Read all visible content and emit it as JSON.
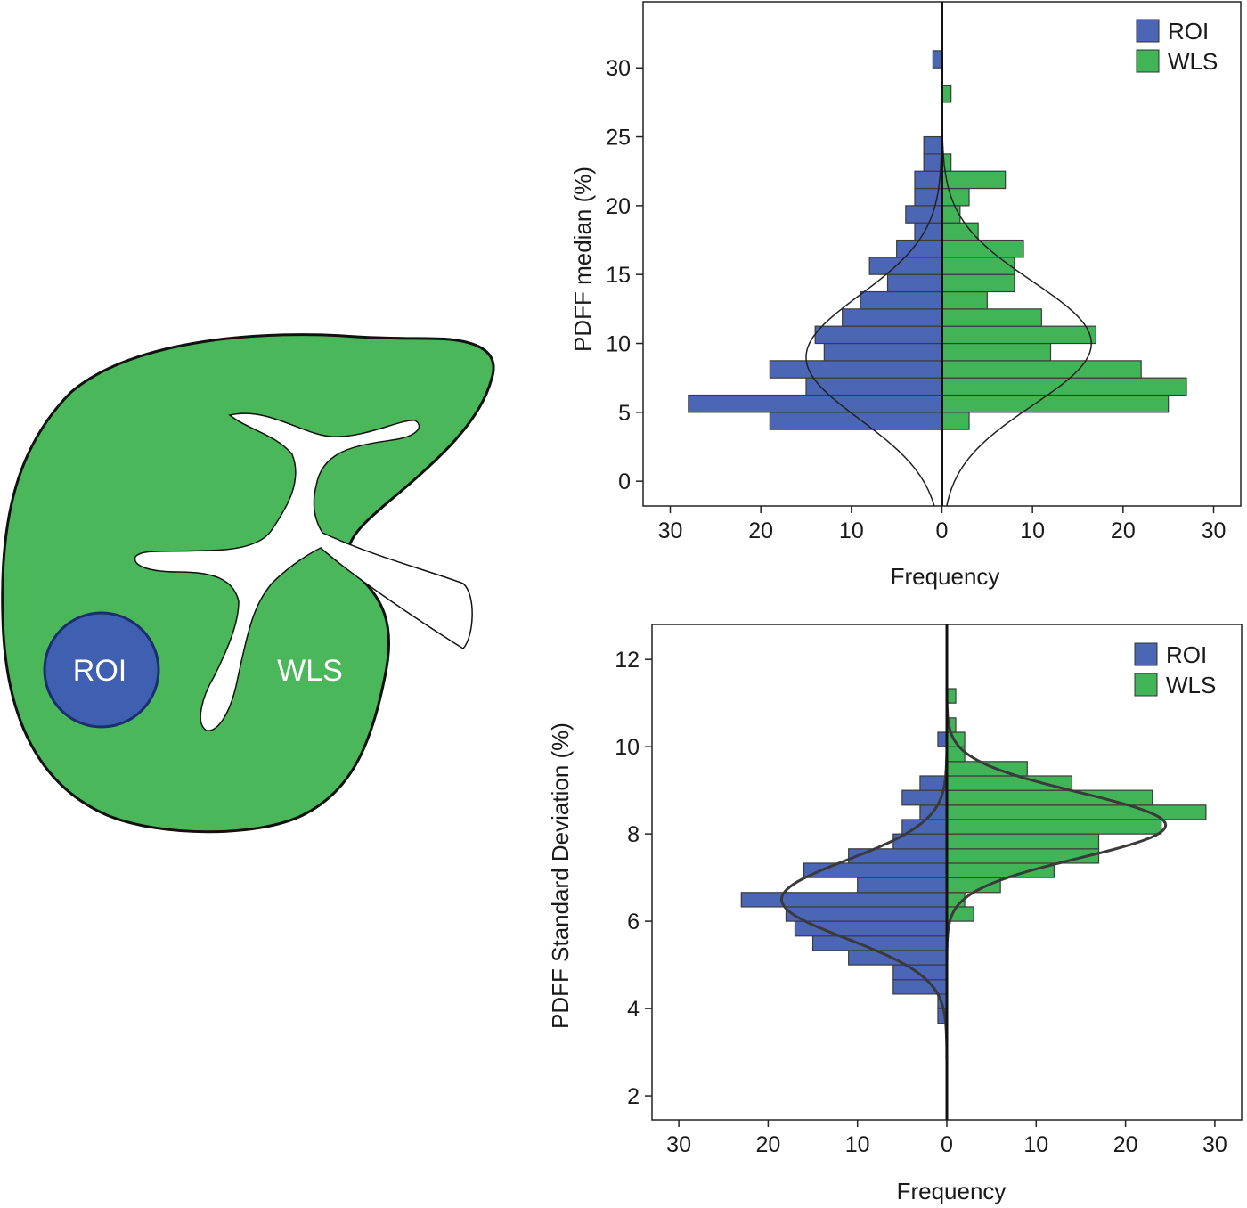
{
  "diagram": {
    "roi_label": "ROI",
    "wls_label": "WLS",
    "colors": {
      "liver": "#4ab85a",
      "roi": "#3f5fb0",
      "vessel": "#ffffff",
      "outline": "#111111"
    }
  },
  "chart_data": [
    {
      "type": "bar",
      "orientation": "horizontal-back-to-back",
      "xlabel": "Frequency",
      "ylabel": "PDFF median (%)",
      "ylim": [
        -1.8,
        34.8
      ],
      "xlim": [
        -33,
        33
      ],
      "yticks": [
        0,
        5,
        10,
        15,
        20,
        25,
        30
      ],
      "xticks": [
        -30,
        -20,
        -10,
        0,
        10,
        20,
        30
      ],
      "xtick_labels": [
        "30",
        "20",
        "10",
        "0",
        "10",
        "20",
        "30"
      ],
      "bin_edges": [
        2.5,
        3.75,
        5.0,
        6.25,
        7.5,
        8.75,
        10.0,
        11.25,
        12.5,
        13.75,
        15.0,
        16.25,
        17.5,
        18.75,
        20.0,
        21.25,
        22.5,
        23.75,
        25.0,
        26.25,
        27.5,
        28.75,
        30.0,
        31.25
      ],
      "legend_position": "top-right",
      "series": [
        {
          "name": "ROI",
          "side": "left",
          "color": "#4a66b5",
          "values": [
            0,
            19,
            28,
            15,
            19,
            13,
            14,
            11,
            9,
            6,
            8,
            5,
            3,
            4,
            3,
            3,
            2,
            2,
            0,
            0,
            0,
            0,
            1
          ]
        },
        {
          "name": "WLS",
          "side": "right",
          "color": "#41b458",
          "values": [
            0,
            3,
            25,
            27,
            22,
            12,
            17,
            11,
            5,
            8,
            8,
            9,
            4,
            2,
            3,
            7,
            1,
            0,
            0,
            0,
            1,
            0,
            0
          ]
        }
      ],
      "fit_curves": [
        {
          "series": "ROI",
          "side": "left",
          "mean": 9.0,
          "sd": 4.5,
          "peak": 15.0
        },
        {
          "series": "WLS",
          "side": "right",
          "mean": 10.0,
          "sd": 4.5,
          "peak": 16.5
        }
      ]
    },
    {
      "type": "bar",
      "orientation": "horizontal-back-to-back",
      "xlabel": "Frequency",
      "ylabel": "PDFF Standard Deviation (%)",
      "ylim": [
        1.45,
        12.8
      ],
      "xlim": [
        -33,
        33
      ],
      "yticks": [
        2,
        4,
        6,
        8,
        10,
        12
      ],
      "xticks": [
        -30,
        -20,
        -10,
        0,
        10,
        20,
        30
      ],
      "xtick_labels": [
        "30",
        "20",
        "10",
        "0",
        "10",
        "20",
        "30"
      ],
      "bin_edges": [
        3.66,
        4.0,
        4.33,
        4.66,
        5.0,
        5.33,
        5.66,
        6.0,
        6.33,
        6.66,
        7.0,
        7.33,
        7.66,
        8.0,
        8.33,
        8.66,
        9.0,
        9.33,
        9.66,
        10.0,
        10.33,
        10.66,
        11.0,
        11.33
      ],
      "legend_position": "top-right",
      "series": [
        {
          "name": "ROI",
          "side": "left",
          "color": "#4a66b5",
          "values": [
            1,
            1,
            6,
            6,
            11,
            15,
            17,
            18,
            23,
            10,
            16,
            11,
            6,
            5,
            3,
            5,
            3,
            0,
            0,
            1,
            0,
            0,
            0
          ]
        },
        {
          "name": "WLS",
          "side": "right",
          "color": "#41b458",
          "values": [
            0,
            0,
            0,
            0,
            0,
            0,
            0,
            3,
            2,
            6,
            12,
            17,
            17,
            24,
            29,
            23,
            14,
            9,
            2,
            2,
            1,
            0,
            1
          ]
        }
      ],
      "fit_curves": [
        {
          "series": "ROI",
          "side": "left",
          "mean": 6.5,
          "sd": 0.9,
          "peak": 18.5
        },
        {
          "series": "WLS",
          "side": "right",
          "mean": 8.2,
          "sd": 0.75,
          "peak": 24.5
        }
      ]
    }
  ]
}
